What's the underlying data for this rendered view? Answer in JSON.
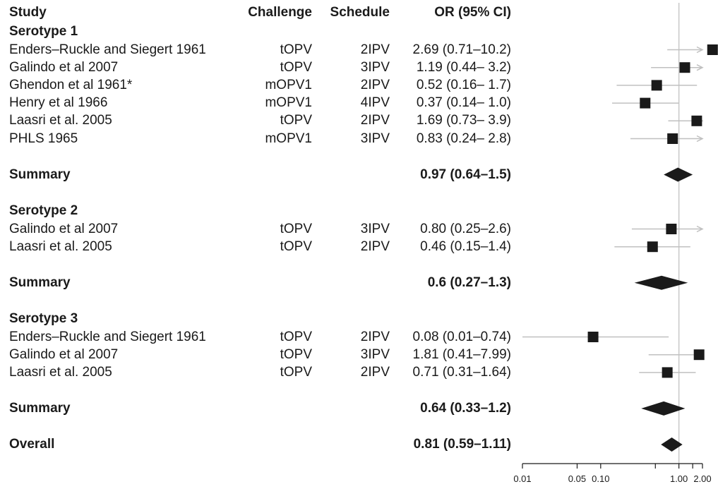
{
  "chart_data": {
    "type": "forest",
    "columns": {
      "study": "Study",
      "challenge": "Challenge",
      "schedule": "Schedule",
      "or": "OR (95% CI)"
    },
    "x_scale": "log",
    "xlim": [
      0.01,
      2.0
    ],
    "reference_line": 1.0,
    "ticks": [
      0.01,
      0.05,
      0.1,
      0.5,
      1.0,
      1.5,
      2.0
    ],
    "tick_labels": [
      "0.01",
      "0.05",
      "0.10",
      "1.00",
      "2.00"
    ],
    "groups": [
      {
        "title": "Serotype 1",
        "studies": [
          {
            "study": "Enders–Ruckle and Siegert 1961",
            "challenge": "tOPV",
            "schedule": "2IPV",
            "or_text": "2.69 (0.71–10.2)",
            "or": 2.69,
            "lo": 0.71,
            "hi": 10.2
          },
          {
            "study": "Galindo et al 2007",
            "challenge": "tOPV",
            "schedule": "3IPV",
            "or_text": "1.19 (0.44– 3.2)",
            "or": 1.19,
            "lo": 0.44,
            "hi": 3.2
          },
          {
            "study": "Ghendon et al 1961*",
            "challenge": "mOPV1",
            "schedule": "2IPV",
            "or_text": "0.52 (0.16– 1.7)",
            "or": 0.52,
            "lo": 0.16,
            "hi": 1.7
          },
          {
            "study": "Henry et al 1966",
            "challenge": "mOPV1",
            "schedule": "4IPV",
            "or_text": "0.37 (0.14– 1.0)",
            "or": 0.37,
            "lo": 0.14,
            "hi": 1.0
          },
          {
            "study": "Laasri et al. 2005",
            "challenge": "tOPV",
            "schedule": "2IPV",
            "or_text": "1.69 (0.73– 3.9)",
            "or": 1.69,
            "lo": 0.73,
            "hi": 3.9
          },
          {
            "study": "PHLS 1965",
            "challenge": "mOPV1",
            "schedule": "3IPV",
            "or_text": "0.83 (0.24– 2.8)",
            "or": 0.83,
            "lo": 0.24,
            "hi": 2.8
          }
        ],
        "summary": {
          "label": "Summary",
          "or_text": "0.97 (0.64–1.5)",
          "or": 0.97,
          "lo": 0.64,
          "hi": 1.5
        }
      },
      {
        "title": "Serotype 2",
        "studies": [
          {
            "study": "Galindo et al 2007",
            "challenge": "tOPV",
            "schedule": "3IPV",
            "or_text": "0.80 (0.25–2.6)",
            "or": 0.8,
            "lo": 0.25,
            "hi": 2.6
          },
          {
            "study": "Laasri et al. 2005",
            "challenge": "tOPV",
            "schedule": "2IPV",
            "or_text": "0.46 (0.15–1.4)",
            "or": 0.46,
            "lo": 0.15,
            "hi": 1.4
          }
        ],
        "summary": {
          "label": "Summary",
          "or_text": "0.6 (0.27–1.3)",
          "or": 0.6,
          "lo": 0.27,
          "hi": 1.3
        }
      },
      {
        "title": "Serotype 3",
        "studies": [
          {
            "study": "Enders–Ruckle and Siegert 1961",
            "challenge": "tOPV",
            "schedule": "2IPV",
            "or_text": "0.08 (0.01–0.74)",
            "or": 0.08,
            "lo": 0.01,
            "hi": 0.74
          },
          {
            "study": "Galindo et al 2007",
            "challenge": "tOPV",
            "schedule": "3IPV",
            "or_text": "1.81 (0.41–7.99)",
            "or": 1.81,
            "lo": 0.41,
            "hi": 7.99
          },
          {
            "study": "Laasri et al. 2005",
            "challenge": "tOPV",
            "schedule": "2IPV",
            "or_text": "0.71 (0.31–1.64)",
            "or": 0.71,
            "lo": 0.31,
            "hi": 1.64
          }
        ],
        "summary": {
          "label": "Summary",
          "or_text": "0.64 (0.33–1.2)",
          "or": 0.64,
          "lo": 0.33,
          "hi": 1.2
        }
      }
    ],
    "overall": {
      "label": "Overall",
      "or_text": "0.81 (0.59–1.11)",
      "or": 0.81,
      "lo": 0.59,
      "hi": 1.11
    },
    "colors": {
      "marker": "#1a1a1a",
      "ci_line": "#c0c0c0",
      "ref_line": "#c8c8c8",
      "axis": "#1a1a1a"
    }
  }
}
